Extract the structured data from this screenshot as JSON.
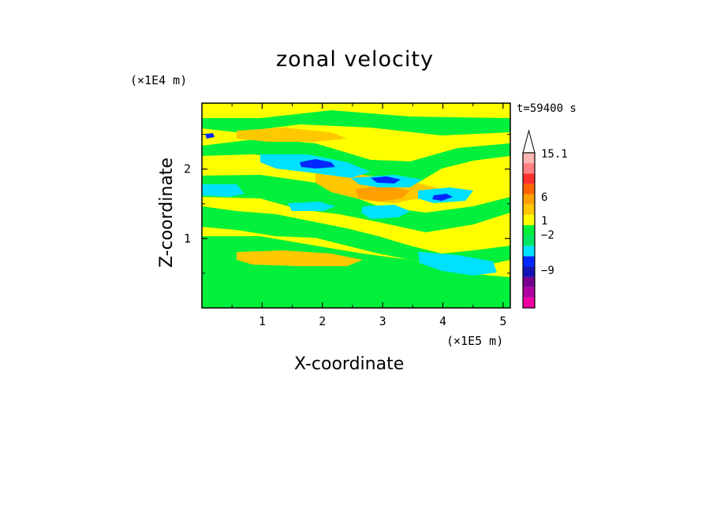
{
  "chart_data": {
    "type": "heatmap",
    "title": "zonal velocity",
    "xlabel": "X-coordinate",
    "ylabel": "Z-coordinate",
    "x_unit": "(×1E5 m)",
    "y_unit": "(×1E4 m)",
    "timestamp": "t=59400 s",
    "xlim": [
      0,
      5.12
    ],
    "ylim": [
      0,
      2.95
    ],
    "x_ticks": [
      1,
      2,
      3,
      4,
      5
    ],
    "y_ticks": [
      1,
      2
    ],
    "colorbar": {
      "ticks": [
        {
          "label": "15.1",
          "value": 15.1
        },
        {
          "label": "6",
          "value": 6
        },
        {
          "label": "1",
          "value": 1
        },
        {
          "label": "−2",
          "value": -2
        },
        {
          "label": "−9",
          "value": -9
        }
      ],
      "colors": [
        "#f000a0",
        "#b000a0",
        "#780090",
        "#1414b4",
        "#0028ff",
        "#00e0ff",
        "#00e664",
        "#00f03c",
        "#ffff00",
        "#ffc800",
        "#ffa000",
        "#ff6400",
        "#ff3030",
        "#ff8080",
        "#ffb4b4"
      ]
    },
    "field_colors": {
      "yellow": "#ffff00",
      "green": "#00f03c",
      "cyan": "#00e0ff",
      "orange": "#ffc800",
      "dark_orange": "#ffa000",
      "blue": "#0028ff"
    }
  }
}
